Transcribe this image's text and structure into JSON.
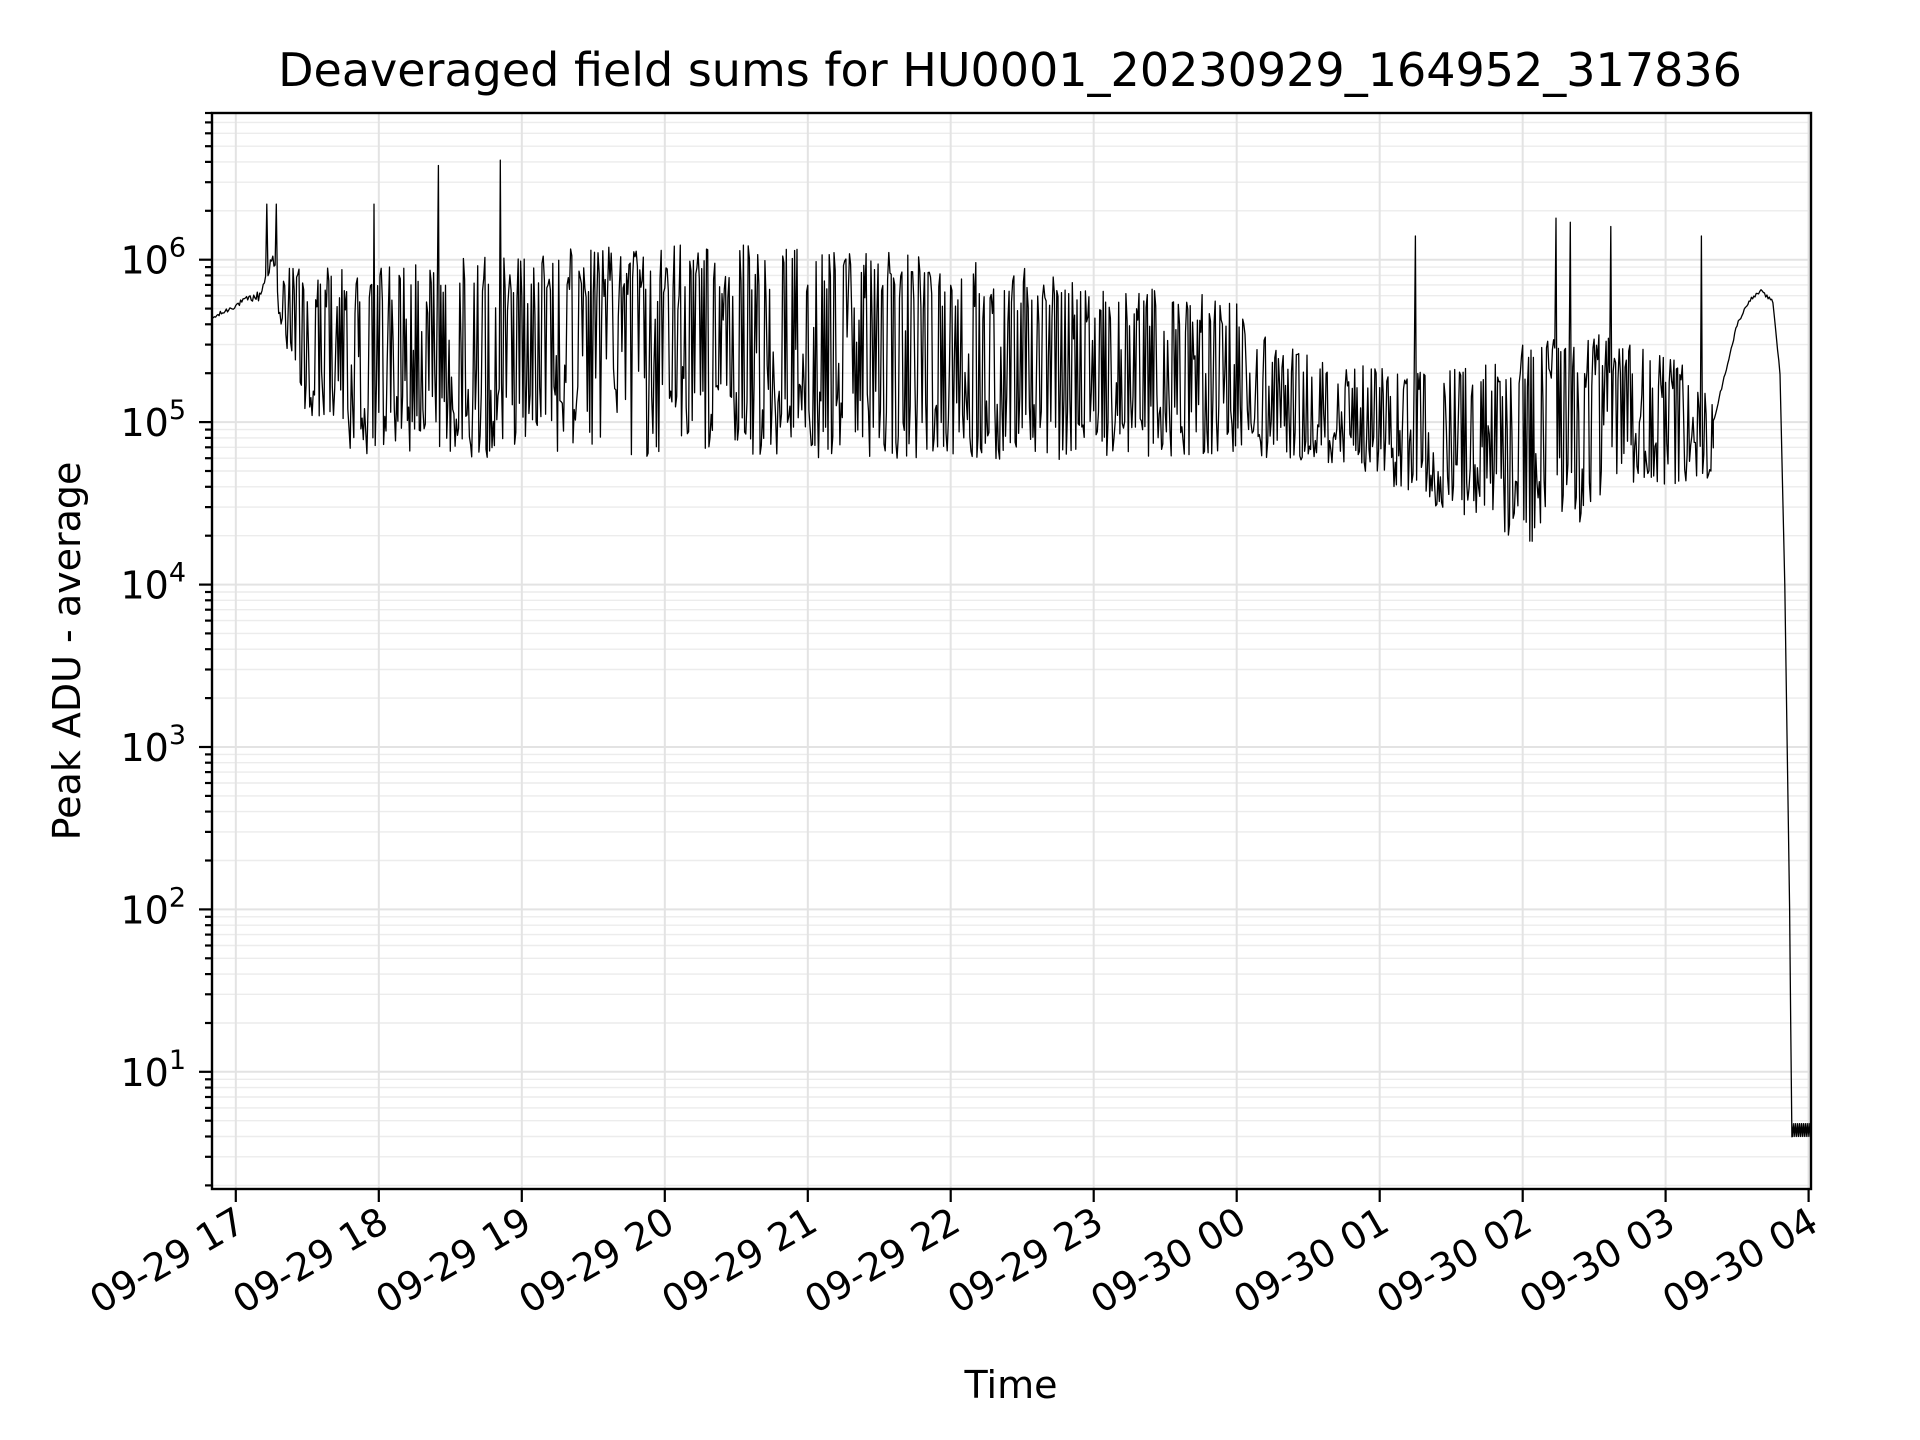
{
  "chart_data": {
    "type": "line",
    "title": "Deaveraged field sums for HU0001_20230929_164952_317836",
    "xlabel": "Time",
    "ylabel": "Peak ADU - average",
    "yscale": "log",
    "xlim": [
      "2023-09-29 16:50",
      "2023-09-30 04:01"
    ],
    "ylim": [
      1.9,
      8000000
    ],
    "grid": true,
    "x_ticks": [
      "09-29 17",
      "09-29 18",
      "09-29 19",
      "09-29 20",
      "09-29 21",
      "09-29 22",
      "09-29 23",
      "09-30 00",
      "09-30 01",
      "09-30 02",
      "09-30 03",
      "09-30 04"
    ],
    "x_tick_times": [
      "2023-09-29 17:00",
      "2023-09-29 18:00",
      "2023-09-29 19:00",
      "2023-09-29 20:00",
      "2023-09-29 21:00",
      "2023-09-29 22:00",
      "2023-09-29 23:00",
      "2023-09-30 00:00",
      "2023-09-30 01:00",
      "2023-09-30 02:00",
      "2023-09-30 03:00",
      "2023-09-30 04:00"
    ],
    "y_tick_values": [
      10,
      100,
      1000,
      10000,
      100000,
      1000000
    ],
    "y_ticks": [
      {
        "base": "10",
        "exp": "1"
      },
      {
        "base": "10",
        "exp": "2"
      },
      {
        "base": "10",
        "exp": "3"
      },
      {
        "base": "10",
        "exp": "4"
      },
      {
        "base": "10",
        "exp": "5"
      },
      {
        "base": "10",
        "exp": "6"
      }
    ],
    "envelope": {
      "time": [
        "2023-09-29 16:50",
        "2023-09-29 17:05",
        "2023-09-29 17:10",
        "2023-09-29 17:15",
        "2023-09-29 17:20",
        "2023-09-29 17:30",
        "2023-09-29 17:40",
        "2023-09-29 18:00",
        "2023-09-29 18:30",
        "2023-09-29 19:00",
        "2023-09-29 19:30",
        "2023-09-29 20:00",
        "2023-09-29 20:30",
        "2023-09-29 21:00",
        "2023-09-29 21:30",
        "2023-09-29 22:00",
        "2023-09-29 22:30",
        "2023-09-29 23:00",
        "2023-09-29 23:30",
        "2023-09-30 00:00",
        "2023-09-30 00:10",
        "2023-09-30 00:20",
        "2023-09-30 00:40",
        "2023-09-30 01:00",
        "2023-09-30 01:20",
        "2023-09-30 01:40",
        "2023-09-30 02:00",
        "2023-09-30 02:20",
        "2023-09-30 02:40",
        "2023-09-30 03:00",
        "2023-09-30 03:15",
        "2023-09-30 03:20"
      ],
      "high": [
        450000,
        600000,
        650000,
        1100000,
        900000,
        900000,
        900000,
        900000,
        1000000,
        1100000,
        1200000,
        1250000,
        1250000,
        1250000,
        1150000,
        1000000,
        900000,
        750000,
        650000,
        600000,
        350000,
        300000,
        250000,
        220000,
        200000,
        220000,
        300000,
        400000,
        350000,
        250000,
        220000,
        200000
      ],
      "low": [
        420000,
        550000,
        550000,
        900000,
        300000,
        100000,
        70000,
        60000,
        60000,
        60000,
        60000,
        60000,
        60000,
        60000,
        60000,
        55000,
        55000,
        60000,
        60000,
        65000,
        55000,
        60000,
        55000,
        45000,
        30000,
        25000,
        18000,
        20000,
        35000,
        40000,
        45000,
        45000
      ]
    },
    "spikes": [
      {
        "time": "2023-09-29 17:13",
        "value": 2200000
      },
      {
        "time": "2023-09-29 17:17",
        "value": 2200000
      },
      {
        "time": "2023-09-29 17:58",
        "value": 2200000
      },
      {
        "time": "2023-09-29 18:25",
        "value": 3800000
      },
      {
        "time": "2023-09-29 18:51",
        "value": 4100000
      },
      {
        "time": "2023-09-30 01:15",
        "value": 1400000
      },
      {
        "time": "2023-09-30 02:14",
        "value": 1800000
      },
      {
        "time": "2023-09-30 02:20",
        "value": 1700000
      },
      {
        "time": "2023-09-30 02:37",
        "value": 1600000
      },
      {
        "time": "2023-09-30 03:15",
        "value": 1400000
      }
    ],
    "bump": {
      "time": [
        "2023-09-30 03:20",
        "2023-09-30 03:25",
        "2023-09-30 03:30",
        "2023-09-30 03:35",
        "2023-09-30 03:40",
        "2023-09-30 03:45",
        "2023-09-30 03:48",
        "2023-09-30 03:50",
        "2023-09-30 03:52",
        "2023-09-30 03:53"
      ],
      "value": [
        100000,
        200000,
        400000,
        560000,
        640000,
        550000,
        200000,
        10000,
        100,
        4
      ]
    },
    "tail": {
      "time_start": "2023-09-30 03:53",
      "time_end": "2023-09-30 04:01",
      "low": 4,
      "high": 4.8
    }
  }
}
